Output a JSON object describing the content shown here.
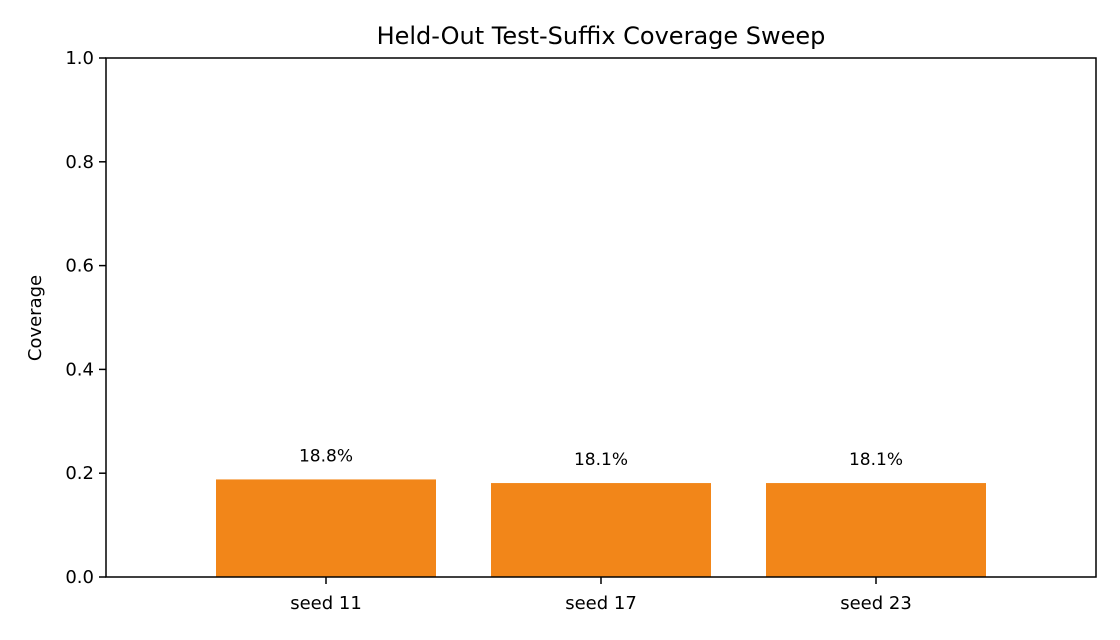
{
  "chart_data": {
    "type": "bar",
    "title": "Held-Out Test-Suffix Coverage Sweep",
    "xlabel": "",
    "ylabel": "Coverage",
    "categories": [
      "seed 11",
      "seed 17",
      "seed 23"
    ],
    "values": [
      0.188,
      0.181,
      0.181
    ],
    "data_labels": [
      "18.8%",
      "18.1%",
      "18.1%"
    ],
    "ylim": [
      0.0,
      1.0
    ],
    "yticks": [
      0.0,
      0.2,
      0.4,
      0.6,
      0.8,
      1.0
    ],
    "ytick_labels": [
      "0.0",
      "0.2",
      "0.4",
      "0.6",
      "0.8",
      "1.0"
    ],
    "bar_color": "#f28619",
    "grid": false,
    "legend": "none"
  }
}
